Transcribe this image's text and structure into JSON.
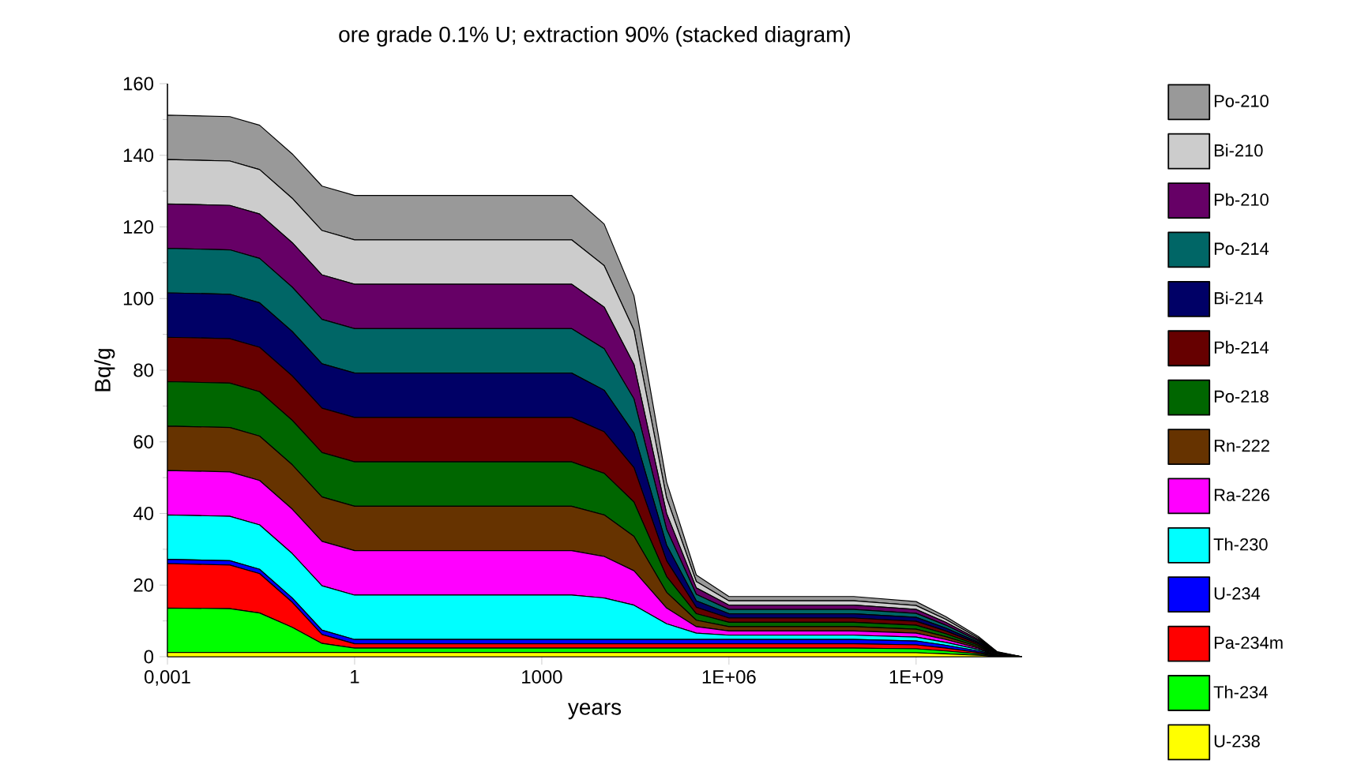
{
  "chart_data": {
    "type": "area",
    "stacked": true,
    "title": "ore grade 0.1% U; extraction 90%   (stacked diagram)",
    "xlabel": "years",
    "ylabel": "Bq/g",
    "log": "x",
    "legend": "right",
    "grid": false,
    "marker": "none",
    "xlim": [
      0.001,
      50000000000
    ],
    "ylim": [
      0,
      160
    ],
    "xticks": [
      {
        "value": 0.001,
        "label": "0,001"
      },
      1,
      1000,
      {
        "value": 1000000,
        "label": "1E+06"
      },
      {
        "value": 1000000000,
        "label": "1E+09"
      }
    ],
    "yticks": [
      0,
      20,
      40,
      60,
      80,
      100,
      120,
      140,
      160
    ],
    "x": [
      0.001,
      0.01,
      0.03,
      0.1,
      0.3,
      1,
      10,
      100,
      1000,
      3000,
      10000,
      30000,
      100000,
      300000,
      1000000,
      10000000,
      100000000,
      1000000000,
      3000000000,
      10000000000,
      20000000000,
      50000000000
    ],
    "series": [
      {
        "name": "U-238",
        "color": "#ffff00",
        "values": [
          1.2,
          1.2,
          1.2,
          1.2,
          1.2,
          1.2,
          1.2,
          1.2,
          1.2,
          1.2,
          1.2,
          1.2,
          1.2,
          1.2,
          1.2,
          1.2,
          1.2,
          1.1,
          0.8,
          0.4,
          0.1,
          0
        ]
      },
      {
        "name": "Th-234",
        "color": "#00ff00",
        "values": [
          12.4,
          12.2,
          11,
          7,
          2.5,
          1.2,
          1.2,
          1.2,
          1.2,
          1.2,
          1.2,
          1.2,
          1.2,
          1.2,
          1.2,
          1.2,
          1.2,
          1.1,
          0.8,
          0.4,
          0.1,
          0
        ]
      },
      {
        "name": "Pa-234m",
        "color": "#ff0000",
        "values": [
          12.4,
          12.2,
          11,
          7,
          2.5,
          1.2,
          1.2,
          1.2,
          1.2,
          1.2,
          1.2,
          1.2,
          1.2,
          1.2,
          1.2,
          1.2,
          1.2,
          1.1,
          0.8,
          0.4,
          0.1,
          0
        ]
      },
      {
        "name": "U-234",
        "color": "#0000ff",
        "values": [
          1.2,
          1.2,
          1.2,
          1.2,
          1.2,
          1.2,
          1.2,
          1.2,
          1.2,
          1.2,
          1.2,
          1.2,
          1.2,
          1.2,
          1.2,
          1.2,
          1.2,
          1.1,
          0.8,
          0.4,
          0.1,
          0
        ]
      },
      {
        "name": "Th-230",
        "color": "#00ffff",
        "values": [
          12.4,
          12.4,
          12.4,
          12.4,
          12.4,
          12.4,
          12.4,
          12.4,
          12.4,
          12.4,
          11.6,
          9.6,
          4.4,
          1.8,
          1.2,
          1.2,
          1.2,
          1.1,
          0.8,
          0.4,
          0.1,
          0
        ]
      },
      {
        "name": "Ra-226",
        "color": "#ff00ff",
        "values": [
          12.4,
          12.4,
          12.4,
          12.4,
          12.4,
          12.4,
          12.4,
          12.4,
          12.4,
          12.4,
          11.6,
          9.6,
          4.4,
          1.8,
          1.2,
          1.2,
          1.2,
          1.1,
          0.8,
          0.4,
          0.1,
          0
        ]
      },
      {
        "name": "Rn-222",
        "color": "#663300",
        "values": [
          12.4,
          12.4,
          12.4,
          12.4,
          12.4,
          12.4,
          12.4,
          12.4,
          12.4,
          12.4,
          11.6,
          9.6,
          4.4,
          1.8,
          1.2,
          1.2,
          1.2,
          1.1,
          0.8,
          0.4,
          0.1,
          0
        ]
      },
      {
        "name": "Po-218",
        "color": "#006600",
        "values": [
          12.4,
          12.4,
          12.4,
          12.4,
          12.4,
          12.4,
          12.4,
          12.4,
          12.4,
          12.4,
          11.6,
          9.6,
          4.4,
          1.8,
          1.2,
          1.2,
          1.2,
          1.1,
          0.8,
          0.4,
          0.1,
          0
        ]
      },
      {
        "name": "Pb-214",
        "color": "#660000",
        "values": [
          12.4,
          12.4,
          12.4,
          12.4,
          12.4,
          12.4,
          12.4,
          12.4,
          12.4,
          12.4,
          11.6,
          9.6,
          4.4,
          1.8,
          1.2,
          1.2,
          1.2,
          1.1,
          0.8,
          0.4,
          0.1,
          0
        ]
      },
      {
        "name": "Bi-214",
        "color": "#000066",
        "values": [
          12.4,
          12.4,
          12.4,
          12.4,
          12.4,
          12.4,
          12.4,
          12.4,
          12.4,
          12.4,
          11.6,
          9.6,
          4.4,
          1.8,
          1.2,
          1.2,
          1.2,
          1.1,
          0.8,
          0.4,
          0.1,
          0
        ]
      },
      {
        "name": "Po-214",
        "color": "#006666",
        "values": [
          12.4,
          12.4,
          12.4,
          12.4,
          12.4,
          12.4,
          12.4,
          12.4,
          12.4,
          12.4,
          11.6,
          9.6,
          4.4,
          1.8,
          1.2,
          1.2,
          1.2,
          1.1,
          0.8,
          0.4,
          0.1,
          0
        ]
      },
      {
        "name": "Pb-210",
        "color": "#660066",
        "values": [
          12.4,
          12.4,
          12.4,
          12.4,
          12.4,
          12.4,
          12.4,
          12.4,
          12.4,
          12.4,
          11.6,
          9.6,
          4.4,
          1.8,
          1.2,
          1.2,
          1.2,
          1.1,
          0.8,
          0.4,
          0.1,
          0
        ]
      },
      {
        "name": "Bi-210",
        "color": "#cccccc",
        "values": [
          12.4,
          12.4,
          12.4,
          12.4,
          12.4,
          12.4,
          12.4,
          12.4,
          12.4,
          12.4,
          11.6,
          9.6,
          4.4,
          1.8,
          1.2,
          1.2,
          1.2,
          1.1,
          0.8,
          0.4,
          0.1,
          0
        ]
      },
      {
        "name": "Po-210",
        "color": "#999999",
        "values": [
          12.4,
          12.4,
          12.4,
          12.4,
          12.4,
          12.4,
          12.4,
          12.4,
          12.4,
          12.4,
          11.6,
          9.6,
          4.4,
          1.8,
          1.2,
          1.2,
          1.2,
          1.1,
          0.8,
          0.4,
          0.1,
          0
        ]
      }
    ]
  }
}
